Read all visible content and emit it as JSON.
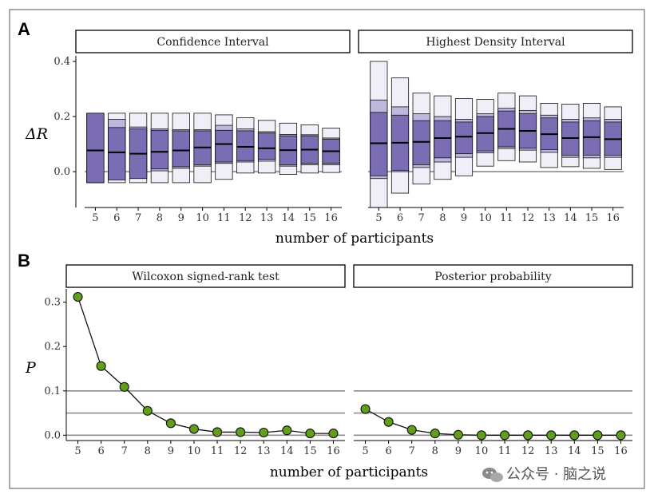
{
  "panel_a_label": "A",
  "panel_b_label": "B",
  "chart_data": [
    {
      "type": "box",
      "panel": "A",
      "facet": "Confidence Interval",
      "xlabel": "number of participants",
      "ylabel": "ΔR",
      "x": [
        5,
        6,
        7,
        8,
        9,
        10,
        11,
        12,
        13,
        14,
        15,
        16
      ],
      "ylim": [
        -0.13,
        0.42
      ],
      "yticks": [
        "0.0",
        "0.2",
        "0.4"
      ],
      "ytick_values": [
        0.0,
        0.2,
        0.4
      ],
      "outer_low": [
        -0.04,
        -0.04,
        -0.04,
        -0.04,
        -0.04,
        -0.04,
        -0.028,
        -0.005,
        -0.005,
        -0.01,
        -0.005,
        -0.003
      ],
      "outer_high": [
        0.212,
        0.212,
        0.212,
        0.212,
        0.212,
        0.212,
        0.206,
        0.196,
        0.186,
        0.176,
        0.17,
        0.158
      ],
      "fill_low": [
        -0.04,
        -0.03,
        -0.025,
        0.01,
        0.018,
        0.025,
        0.035,
        0.04,
        0.045,
        0.025,
        0.03,
        0.03
      ],
      "fill_high": [
        0.212,
        0.16,
        0.155,
        0.15,
        0.148,
        0.148,
        0.15,
        0.148,
        0.14,
        0.13,
        0.13,
        0.118
      ],
      "mid_low": [
        -0.04,
        -0.025,
        -0.018,
        0.003,
        0.012,
        0.02,
        0.03,
        0.035,
        0.038,
        0.02,
        0.025,
        0.025
      ],
      "mid_high": [
        0.212,
        0.19,
        0.162,
        0.155,
        0.152,
        0.152,
        0.168,
        0.155,
        0.145,
        0.135,
        0.134,
        0.122
      ],
      "median": [
        0.077,
        0.07,
        0.065,
        0.072,
        0.077,
        0.088,
        0.1,
        0.09,
        0.085,
        0.078,
        0.08,
        0.074
      ]
    },
    {
      "type": "box",
      "panel": "A",
      "facet": "Highest Density Interval",
      "xlabel": "number of participants",
      "ylabel": "ΔR",
      "x": [
        5,
        6,
        7,
        8,
        9,
        10,
        11,
        12,
        13,
        14,
        15,
        16
      ],
      "ylim": [
        -0.13,
        0.42
      ],
      "outer_low": [
        -0.13,
        -0.078,
        -0.045,
        -0.028,
        -0.015,
        0.02,
        0.04,
        0.035,
        0.015,
        0.018,
        0.012,
        0.008
      ],
      "outer_high": [
        0.4,
        0.34,
        0.285,
        0.275,
        0.265,
        0.262,
        0.285,
        0.275,
        0.248,
        0.245,
        0.248,
        0.235
      ],
      "fill_low": [
        -0.015,
        0.005,
        0.025,
        0.05,
        0.065,
        0.075,
        0.09,
        0.085,
        0.08,
        0.06,
        0.06,
        0.06
      ],
      "fill_high": [
        0.215,
        0.205,
        0.185,
        0.185,
        0.18,
        0.2,
        0.22,
        0.21,
        0.195,
        0.18,
        0.185,
        0.18
      ],
      "mid_low": [
        -0.025,
        0.0,
        0.015,
        0.035,
        0.052,
        0.068,
        0.084,
        0.078,
        0.07,
        0.052,
        0.05,
        0.052
      ],
      "mid_high": [
        0.26,
        0.235,
        0.21,
        0.2,
        0.19,
        0.21,
        0.23,
        0.222,
        0.205,
        0.19,
        0.195,
        0.19
      ],
      "median": [
        0.103,
        0.105,
        0.108,
        0.122,
        0.127,
        0.14,
        0.155,
        0.148,
        0.136,
        0.122,
        0.125,
        0.118
      ]
    },
    {
      "type": "line",
      "panel": "B",
      "facet": "Wilcoxon signed-rank test",
      "xlabel": "number of participants",
      "ylabel": "P",
      "x": [
        5,
        6,
        7,
        8,
        9,
        10,
        11,
        12,
        13,
        14,
        15,
        16
      ],
      "y": [
        0.312,
        0.156,
        0.109,
        0.055,
        0.027,
        0.014,
        0.007,
        0.007,
        0.006,
        0.011,
        0.004,
        0.004
      ],
      "ylim": [
        -0.012,
        0.33
      ],
      "yticks": [
        "0.0",
        "0.1",
        "0.2",
        "0.3"
      ],
      "ytick_values": [
        0.0,
        0.1,
        0.2,
        0.3
      ],
      "reference_lines": [
        0.0,
        0.05,
        0.1
      ]
    },
    {
      "type": "line",
      "panel": "B",
      "facet": "Posterior probability",
      "xlabel": "number of participants",
      "ylabel": "P",
      "x": [
        5,
        6,
        7,
        8,
        9,
        10,
        11,
        12,
        13,
        14,
        15,
        16
      ],
      "y": [
        0.059,
        0.03,
        0.012,
        0.004,
        0.001,
        0.0,
        0.0,
        0.0,
        0.0,
        0.0,
        0.0,
        0.0
      ],
      "ylim": [
        -0.012,
        0.33
      ],
      "reference_lines": [
        0.0,
        0.05,
        0.1
      ]
    }
  ],
  "colors": {
    "dark_fill": "#7a6db3",
    "mid_fill": "#bdb8dc",
    "light_fill": "#f0eff7",
    "point_fill": "#5fa018",
    "ref_line": "#8c8c8c"
  },
  "watermark": "公众号 · 脑之说"
}
